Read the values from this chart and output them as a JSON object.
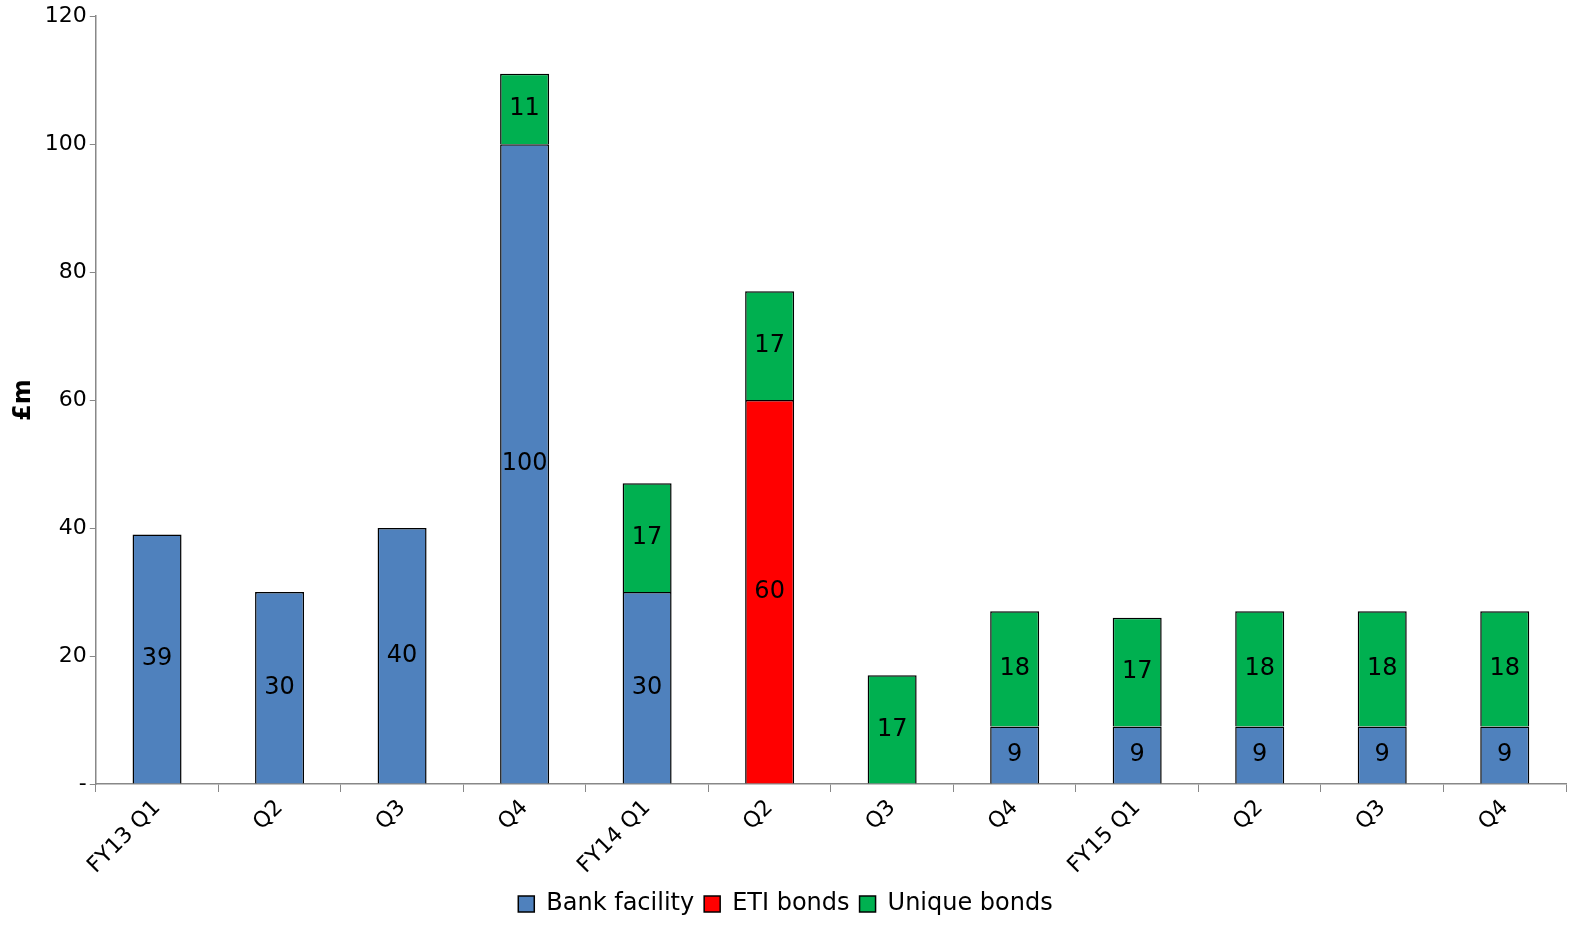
{
  "chart_data": {
    "type": "bar",
    "stacked": true,
    "ylabel": "£m",
    "categories": [
      "FY13 Q1",
      "Q2",
      "Q3",
      "Q4",
      "FY14 Q1",
      "Q2",
      "Q3",
      "Q4",
      "FY15 Q1",
      "Q2",
      "Q3",
      "Q4"
    ],
    "series": [
      {
        "name": "Bank facility",
        "color": "#4f81bd",
        "values": [
          39,
          30,
          40,
          100,
          30,
          null,
          null,
          9,
          9,
          9,
          9,
          9
        ]
      },
      {
        "name": "ETI bonds",
        "color": "#ff0000",
        "values": [
          null,
          null,
          null,
          null,
          null,
          60,
          null,
          null,
          null,
          null,
          null,
          null
        ]
      },
      {
        "name": "Unique bonds",
        "color": "#00b050",
        "values": [
          null,
          null,
          null,
          11,
          17,
          17,
          17,
          18,
          17,
          18,
          18,
          18
        ]
      }
    ],
    "ylim": [
      0,
      120
    ],
    "yticks": [
      {
        "value": 0,
        "label": "-"
      },
      20,
      40,
      60,
      80,
      100,
      120
    ],
    "data_labels": true,
    "legend": "bottom",
    "grid": false
  }
}
